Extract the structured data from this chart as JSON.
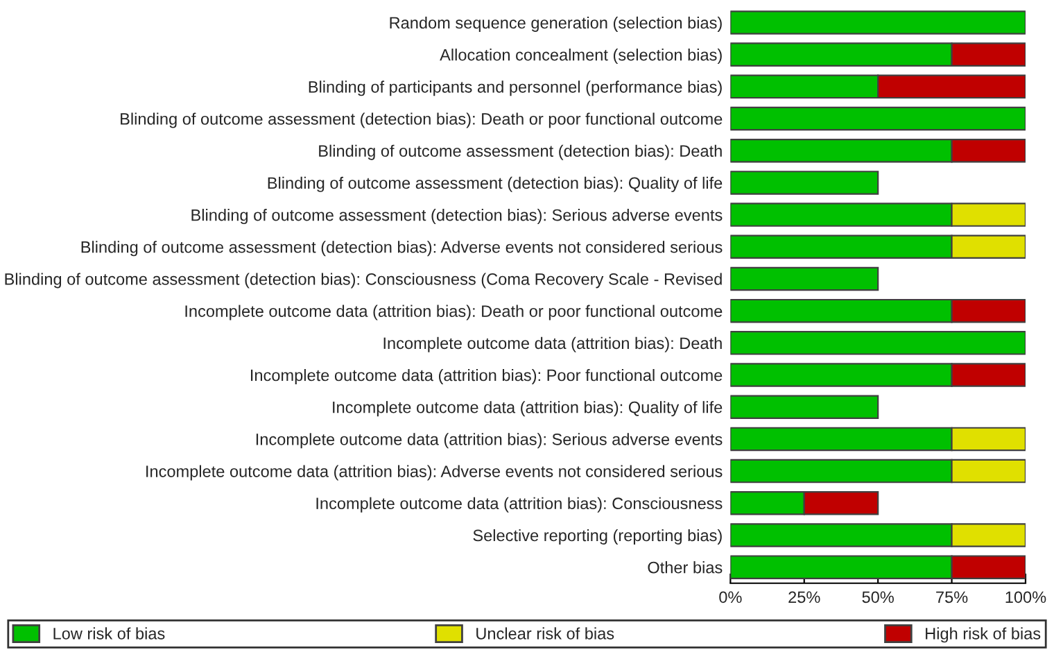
{
  "chart_data": {
    "type": "bar",
    "orientation": "horizontal",
    "stacked": true,
    "categories": [
      "Random sequence generation (selection bias)",
      "Allocation concealment (selection bias)",
      "Blinding of participants and personnel (performance bias)",
      "Blinding of outcome assessment (detection bias): Death or poor functional outcome",
      "Blinding of outcome assessment (detection bias): Death",
      "Blinding of outcome assessment (detection bias): Quality of life",
      "Blinding of outcome assessment (detection bias): Serious adverse events",
      "Blinding of outcome assessment (detection bias): Adverse events not considered serious",
      "Blinding of outcome assessment (detection bias): Consciousness (Coma Recovery Scale - Revised",
      "Incomplete outcome data (attrition bias): Death or poor functional outcome",
      "Incomplete outcome data (attrition bias): Death",
      "Incomplete outcome data (attrition bias): Poor functional outcome",
      "Incomplete outcome data (attrition bias): Quality of life",
      "Incomplete outcome data (attrition bias): Serious adverse events",
      "Incomplete outcome data (attrition bias): Adverse events not considered serious",
      "Incomplete outcome data (attrition bias): Consciousness",
      "Selective reporting (reporting bias)",
      "Other bias"
    ],
    "series": [
      {
        "name": "Low risk of bias",
        "color": "#00c000",
        "values": [
          100,
          75,
          50,
          100,
          75,
          50,
          75,
          75,
          50,
          75,
          100,
          75,
          50,
          75,
          75,
          25,
          75,
          75
        ]
      },
      {
        "name": "Unclear risk of bias",
        "color": "#e0e000",
        "values": [
          null,
          null,
          null,
          null,
          null,
          null,
          25,
          25,
          null,
          null,
          null,
          null,
          null,
          25,
          25,
          null,
          25,
          null
        ]
      },
      {
        "name": "High risk of bias",
        "color": "#c00000",
        "values": [
          null,
          25,
          50,
          null,
          25,
          null,
          null,
          null,
          null,
          25,
          null,
          25,
          null,
          null,
          null,
          25,
          null,
          25
        ]
      }
    ],
    "xlim": [
      0,
      100
    ],
    "xticks": [
      {
        "value": 0,
        "label": "0%"
      },
      {
        "value": 25,
        "label": "25%"
      },
      {
        "value": 50,
        "label": "50%"
      },
      {
        "value": 75,
        "label": "75%"
      },
      {
        "value": 100,
        "label": "100%"
      }
    ],
    "legend": "bottom",
    "grid": false
  }
}
